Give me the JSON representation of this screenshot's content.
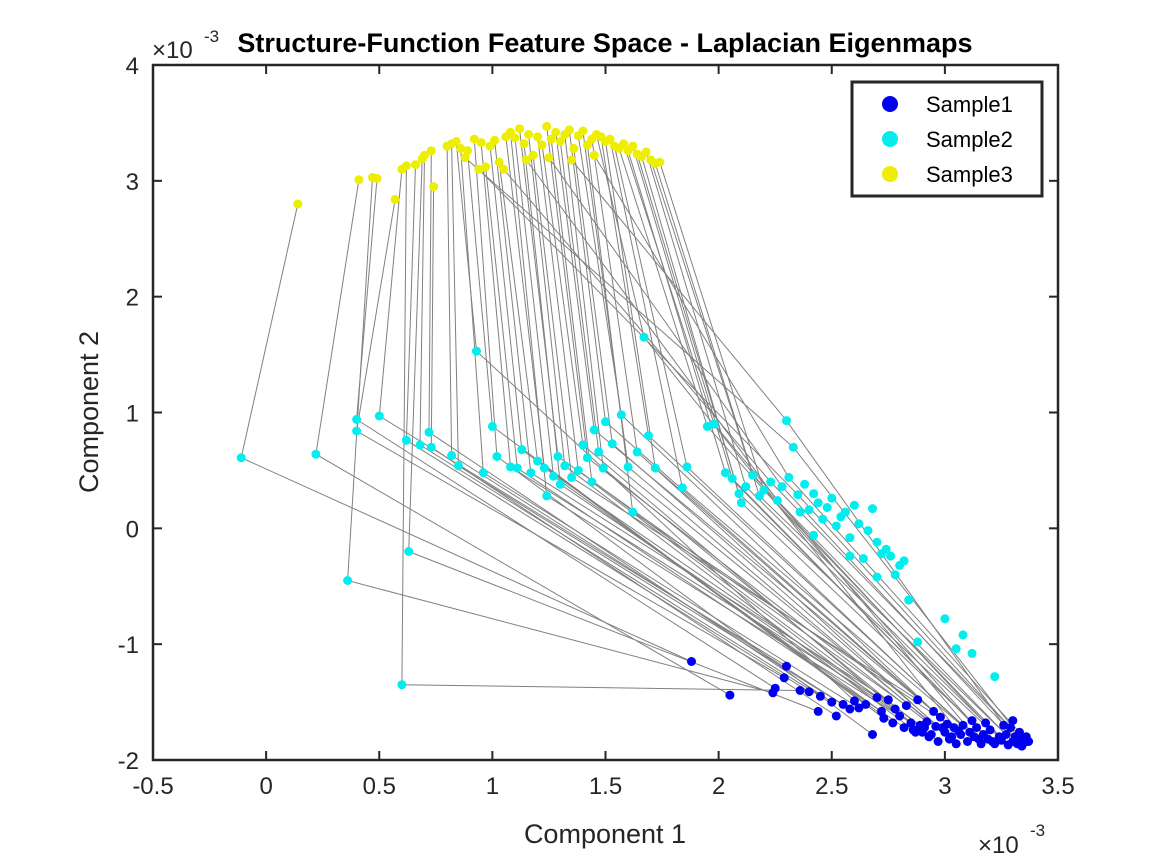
{
  "chart_data": {
    "type": "scatter",
    "title": "Structure-Function Feature Space - Laplacian Eigenmaps",
    "xlabel": "Component 1",
    "ylabel": "Component 2",
    "x_exponent_label": "×10",
    "x_exponent_power": "-3",
    "y_exponent_label": "×10",
    "y_exponent_power": "-3",
    "xlim": [
      -0.5,
      3.5
    ],
    "ylim": [
      -2,
      4
    ],
    "xticks": [
      -0.5,
      0,
      0.5,
      1,
      1.5,
      2,
      2.5,
      3,
      3.5
    ],
    "xtick_labels": [
      "-0.5",
      "0",
      "0.5",
      "1",
      "1.5",
      "2",
      "2.5",
      "3",
      "3.5"
    ],
    "yticks": [
      -2,
      -1,
      0,
      1,
      2,
      3,
      4
    ],
    "ytick_labels": [
      "-2",
      "-1",
      "0",
      "1",
      "2",
      "3",
      "4"
    ],
    "units_note": "all coordinates in units of 1e-3",
    "grid": false,
    "legend_position": "top-right",
    "connector_color": "#808080",
    "series": [
      {
        "name": "Sample1",
        "color": "#0000ee",
        "points": [
          [
            1.88,
            -1.15
          ],
          [
            2.05,
            -1.44
          ],
          [
            2.24,
            -1.42
          ],
          [
            2.25,
            -1.38
          ],
          [
            2.29,
            -1.29
          ],
          [
            2.3,
            -1.19
          ],
          [
            2.36,
            -1.4
          ],
          [
            2.4,
            -1.41
          ],
          [
            2.44,
            -1.58
          ],
          [
            2.45,
            -1.45
          ],
          [
            2.5,
            -1.5
          ],
          [
            2.52,
            -1.62
          ],
          [
            2.55,
            -1.52
          ],
          [
            2.58,
            -1.56
          ],
          [
            2.6,
            -1.49
          ],
          [
            2.62,
            -1.55
          ],
          [
            2.65,
            -1.52
          ],
          [
            2.68,
            -1.78
          ],
          [
            2.7,
            -1.46
          ],
          [
            2.72,
            -1.58
          ],
          [
            2.73,
            -1.64
          ],
          [
            2.75,
            -1.48
          ],
          [
            2.77,
            -1.68
          ],
          [
            2.78,
            -1.56
          ],
          [
            2.8,
            -1.62
          ],
          [
            2.82,
            -1.72
          ],
          [
            2.83,
            -1.53
          ],
          [
            2.85,
            -1.68
          ],
          [
            2.86,
            -1.74
          ],
          [
            2.88,
            -1.48
          ],
          [
            2.89,
            -1.7
          ],
          [
            2.9,
            -1.76
          ],
          [
            2.92,
            -1.67
          ],
          [
            2.93,
            -1.8
          ],
          [
            2.95,
            -1.58
          ],
          [
            2.96,
            -1.71
          ],
          [
            2.97,
            -1.84
          ],
          [
            2.98,
            -1.63
          ],
          [
            3.0,
            -1.76
          ],
          [
            3.01,
            -1.69
          ],
          [
            3.02,
            -1.82
          ],
          [
            3.04,
            -1.72
          ],
          [
            3.05,
            -1.86
          ],
          [
            3.07,
            -1.78
          ],
          [
            3.08,
            -1.7
          ],
          [
            3.1,
            -1.84
          ],
          [
            3.11,
            -1.76
          ],
          [
            3.13,
            -1.8
          ],
          [
            3.14,
            -1.72
          ],
          [
            3.16,
            -1.86
          ],
          [
            3.17,
            -1.78
          ],
          [
            3.19,
            -1.82
          ],
          [
            3.2,
            -1.74
          ],
          [
            3.22,
            -1.86
          ],
          [
            3.24,
            -1.8
          ],
          [
            3.25,
            -1.83
          ],
          [
            3.27,
            -1.78
          ],
          [
            3.28,
            -1.87
          ],
          [
            3.29,
            -1.72
          ],
          [
            3.3,
            -1.84
          ],
          [
            3.31,
            -1.8
          ],
          [
            3.32,
            -1.86
          ],
          [
            3.33,
            -1.76
          ],
          [
            3.34,
            -1.82
          ],
          [
            3.35,
            -1.85
          ],
          [
            3.36,
            -1.8
          ],
          [
            3.37,
            -1.84
          ],
          [
            3.3,
            -1.66
          ],
          [
            3.26,
            -1.7
          ],
          [
            3.18,
            -1.68
          ],
          [
            3.12,
            -1.66
          ],
          [
            3.06,
            -1.75
          ],
          [
            2.99,
            -1.72
          ],
          [
            2.94,
            -1.78
          ],
          [
            2.87,
            -1.76
          ],
          [
            3.21,
            -1.84
          ],
          [
            3.34,
            -1.88
          ],
          [
            3.15,
            -1.82
          ],
          [
            3.03,
            -1.8
          ],
          [
            2.91,
            -1.72
          ]
        ]
      },
      {
        "name": "Sample2",
        "color": "#00eeee",
        "points": [
          [
            -0.11,
            0.61
          ],
          [
            0.22,
            0.64
          ],
          [
            0.36,
            -0.45
          ],
          [
            0.4,
            0.94
          ],
          [
            0.4,
            0.84
          ],
          [
            0.5,
            0.97
          ],
          [
            0.6,
            -1.35
          ],
          [
            0.62,
            0.76
          ],
          [
            0.63,
            -0.2
          ],
          [
            0.68,
            0.72
          ],
          [
            0.72,
            0.83
          ],
          [
            0.73,
            0.7
          ],
          [
            0.82,
            0.63
          ],
          [
            0.85,
            0.54
          ],
          [
            0.93,
            1.53
          ],
          [
            0.96,
            0.48
          ],
          [
            1.0,
            0.88
          ],
          [
            1.02,
            0.62
          ],
          [
            1.08,
            0.53
          ],
          [
            1.11,
            0.52
          ],
          [
            1.13,
            0.68
          ],
          [
            1.17,
            0.48
          ],
          [
            1.2,
            0.58
          ],
          [
            1.23,
            0.52
          ],
          [
            1.24,
            0.28
          ],
          [
            1.27,
            0.45
          ],
          [
            1.29,
            0.62
          ],
          [
            1.3,
            0.38
          ],
          [
            1.32,
            0.54
          ],
          [
            1.35,
            0.44
          ],
          [
            1.38,
            0.5
          ],
          [
            1.4,
            0.72
          ],
          [
            1.42,
            0.61
          ],
          [
            1.44,
            0.4
          ],
          [
            1.45,
            0.85
          ],
          [
            1.47,
            0.66
          ],
          [
            1.49,
            0.52
          ],
          [
            1.5,
            0.92
          ],
          [
            1.53,
            0.73
          ],
          [
            1.57,
            0.98
          ],
          [
            1.6,
            0.53
          ],
          [
            1.62,
            0.14
          ],
          [
            1.64,
            0.66
          ],
          [
            1.67,
            1.65
          ],
          [
            1.69,
            0.8
          ],
          [
            1.72,
            0.52
          ],
          [
            1.84,
            0.35
          ],
          [
            1.86,
            0.53
          ],
          [
            1.95,
            0.88
          ],
          [
            1.98,
            0.9
          ],
          [
            2.03,
            0.48
          ],
          [
            2.06,
            0.43
          ],
          [
            2.09,
            0.3
          ],
          [
            2.1,
            0.22
          ],
          [
            2.12,
            0.36
          ],
          [
            2.15,
            0.46
          ],
          [
            2.18,
            0.28
          ],
          [
            2.2,
            0.33
          ],
          [
            2.23,
            0.4
          ],
          [
            2.26,
            0.24
          ],
          [
            2.28,
            0.36
          ],
          [
            2.3,
            0.93
          ],
          [
            2.31,
            0.44
          ],
          [
            2.33,
            0.7
          ],
          [
            2.35,
            0.29
          ],
          [
            2.38,
            0.38
          ],
          [
            2.4,
            0.16
          ],
          [
            2.42,
            0.3
          ],
          [
            2.44,
            0.22
          ],
          [
            2.46,
            0.08
          ],
          [
            2.48,
            0.18
          ],
          [
            2.5,
            0.26
          ],
          [
            2.52,
            0.02
          ],
          [
            2.54,
            0.1
          ],
          [
            2.56,
            0.14
          ],
          [
            2.58,
            -0.08
          ],
          [
            2.6,
            0.2
          ],
          [
            2.62,
            0.04
          ],
          [
            2.64,
            -0.26
          ],
          [
            2.66,
            -0.02
          ],
          [
            2.68,
            0.17
          ],
          [
            2.7,
            -0.12
          ],
          [
            2.72,
            -0.22
          ],
          [
            2.74,
            -0.18
          ],
          [
            2.76,
            -0.24
          ],
          [
            2.78,
            -0.4
          ],
          [
            2.8,
            -0.32
          ],
          [
            2.82,
            -0.28
          ],
          [
            2.58,
            -0.24
          ],
          [
            2.7,
            -0.42
          ],
          [
            3.0,
            -0.78
          ],
          [
            3.08,
            -0.92
          ],
          [
            3.12,
            -1.08
          ],
          [
            3.22,
            -1.28
          ],
          [
            2.88,
            -0.98
          ],
          [
            2.42,
            -0.06
          ],
          [
            2.36,
            0.14
          ],
          [
            2.84,
            -0.62
          ],
          [
            3.05,
            -1.04
          ]
        ]
      },
      {
        "name": "Sample3",
        "color": "#eeee00",
        "points": [
          [
            0.14,
            2.8
          ],
          [
            0.41,
            3.01
          ],
          [
            0.47,
            3.03
          ],
          [
            0.49,
            3.02
          ],
          [
            0.57,
            2.84
          ],
          [
            0.6,
            3.1
          ],
          [
            0.62,
            3.13
          ],
          [
            0.66,
            3.14
          ],
          [
            0.69,
            3.19
          ],
          [
            0.7,
            3.22
          ],
          [
            0.73,
            3.26
          ],
          [
            0.74,
            2.95
          ],
          [
            0.8,
            3.3
          ],
          [
            0.82,
            3.32
          ],
          [
            0.84,
            3.34
          ],
          [
            0.86,
            3.28
          ],
          [
            0.89,
            3.26
          ],
          [
            0.92,
            3.36
          ],
          [
            0.95,
            3.33
          ],
          [
            0.97,
            3.12
          ],
          [
            0.99,
            3.3
          ],
          [
            1.01,
            3.35
          ],
          [
            1.03,
            3.16
          ],
          [
            1.06,
            3.38
          ],
          [
            1.08,
            3.42
          ],
          [
            1.1,
            3.37
          ],
          [
            1.12,
            3.45
          ],
          [
            1.14,
            3.32
          ],
          [
            1.16,
            3.4
          ],
          [
            1.18,
            3.22
          ],
          [
            1.2,
            3.38
          ],
          [
            1.22,
            3.31
          ],
          [
            1.24,
            3.47
          ],
          [
            1.26,
            3.36
          ],
          [
            1.28,
            3.42
          ],
          [
            1.3,
            3.34
          ],
          [
            1.32,
            3.4
          ],
          [
            1.34,
            3.44
          ],
          [
            1.36,
            3.28
          ],
          [
            1.38,
            3.39
          ],
          [
            1.4,
            3.43
          ],
          [
            1.42,
            3.31
          ],
          [
            1.44,
            3.36
          ],
          [
            1.46,
            3.4
          ],
          [
            1.48,
            3.38
          ],
          [
            1.5,
            3.34
          ],
          [
            1.52,
            3.36
          ],
          [
            1.54,
            3.3
          ],
          [
            1.56,
            3.28
          ],
          [
            1.58,
            3.32
          ],
          [
            1.6,
            3.26
          ],
          [
            1.62,
            3.3
          ],
          [
            1.64,
            3.23
          ],
          [
            1.66,
            3.21
          ],
          [
            1.68,
            3.25
          ],
          [
            1.7,
            3.18
          ],
          [
            1.72,
            3.15
          ],
          [
            1.74,
            3.16
          ],
          [
            1.05,
            3.1
          ],
          [
            1.15,
            3.18
          ],
          [
            1.25,
            3.2
          ],
          [
            1.35,
            3.18
          ],
          [
            1.45,
            3.22
          ],
          [
            0.88,
            3.2
          ],
          [
            0.94,
            3.1
          ]
        ]
      }
    ]
  }
}
